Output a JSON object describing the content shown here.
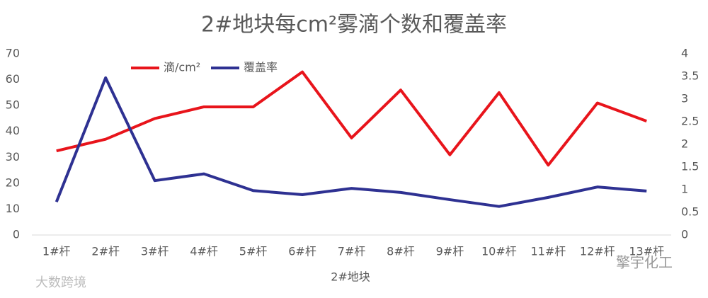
{
  "chart_data": {
    "type": "line",
    "title": "2#地块每cm²雾滴个数和覆盖率",
    "x_label": "2#地块",
    "categories": [
      "1#杆",
      "2#杆",
      "3#杆",
      "4#杆",
      "5#杆",
      "6#杆",
      "7#杆",
      "8#杆",
      "9#杆",
      "10#杆",
      "11#杆",
      "12#杆",
      "13#杆"
    ],
    "series": [
      {
        "name": "滴/cm²",
        "color": "#e8141b",
        "values": [
          32.5,
          37,
          45,
          49.5,
          49.5,
          63,
          37.5,
          56,
          31,
          55,
          27,
          51,
          44
        ]
      },
      {
        "name": "覆盖率",
        "color": "#2e3192",
        "axis": "y2",
        "values": [
          0.73,
          3.47,
          1.2,
          1.35,
          0.98,
          0.89,
          1.03,
          0.94,
          0.78,
          0.63,
          0.83,
          1.06,
          0.97
        ]
      }
    ],
    "ylim": [
      0,
      70
    ],
    "yticks": [
      0,
      10,
      20,
      30,
      40,
      50,
      60,
      70
    ],
    "y2lim": [
      0,
      4
    ],
    "y2ticks": [
      0,
      0.5,
      1,
      1.5,
      2,
      2.5,
      3,
      3.5,
      4
    ],
    "grid": false,
    "legend": "top",
    "watermarks": [
      "大数跨境",
      "擎宇化工"
    ]
  }
}
